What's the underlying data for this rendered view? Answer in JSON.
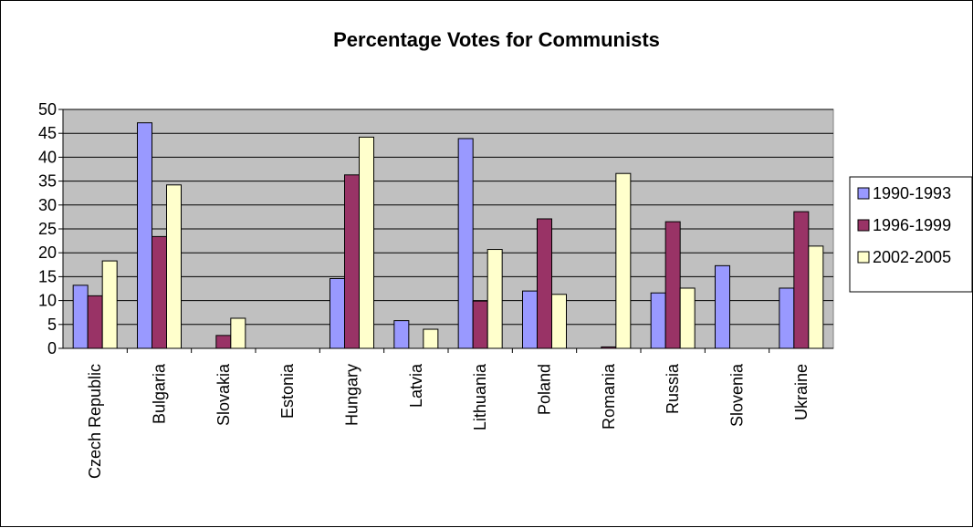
{
  "chart_data": {
    "type": "bar",
    "title": "Percentage Votes for Communists",
    "xlabel": "",
    "ylabel": "",
    "ylim": [
      0,
      50
    ],
    "yticks": [
      "0",
      "5",
      "10",
      "15",
      "20",
      "25",
      "30",
      "35",
      "40",
      "45",
      "50"
    ],
    "categories": [
      "Czech Republic",
      "Bulgaria",
      "Slovakia",
      "Estonia",
      "Hungary",
      "Latvia",
      "Lithuania",
      "Poland",
      "Romania",
      "Russia",
      "Slovenia",
      "Ukraine"
    ],
    "series": [
      {
        "name": "1990-1993",
        "color": "#9999ff",
        "values": [
          13.2,
          47.2,
          0,
          0,
          14.6,
          5.8,
          43.9,
          12.0,
          0,
          11.6,
          17.3,
          12.6
        ]
      },
      {
        "name": "1996-1999",
        "color": "#993366",
        "values": [
          11.0,
          23.4,
          2.7,
          0,
          36.3,
          0,
          9.9,
          27.1,
          0.3,
          26.5,
          0,
          28.6
        ]
      },
      {
        "name": "2002-2005",
        "color": "#ffffcc",
        "values": [
          18.3,
          34.2,
          6.3,
          0,
          44.2,
          4.0,
          20.7,
          11.3,
          36.6,
          12.6,
          0,
          21.4
        ]
      }
    ],
    "grid": true,
    "legend": "right",
    "plot_background": "#c0c0c0"
  }
}
